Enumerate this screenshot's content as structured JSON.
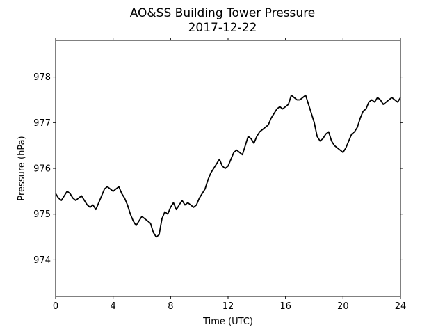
{
  "chart_data": {
    "type": "line",
    "title": "AO&SS Building Tower Pressure",
    "subtitle": "2017-12-22",
    "xlabel": "Time (UTC)",
    "ylabel": "Pressure (hPa)",
    "xlim": [
      0,
      24
    ],
    "ylim": [
      973.2,
      978.8
    ],
    "xticks": [
      0,
      4,
      8,
      12,
      16,
      20,
      24
    ],
    "yticks": [
      974,
      975,
      976,
      977,
      978
    ],
    "grid": false,
    "line_color": "#000000",
    "series": [
      {
        "x": [
          0,
          0.2,
          0.4,
          0.6,
          0.8,
          1.0,
          1.2,
          1.4,
          1.6,
          1.8,
          2.0,
          2.2,
          2.4,
          2.6,
          2.8,
          3.0,
          3.2,
          3.4,
          3.6,
          3.8,
          4.0,
          4.2,
          4.4,
          4.6,
          4.8,
          5.0,
          5.2,
          5.4,
          5.6,
          5.8,
          6.0,
          6.2,
          6.4,
          6.6,
          6.8,
          7.0,
          7.2,
          7.4,
          7.6,
          7.8,
          8.0,
          8.2,
          8.4,
          8.6,
          8.8,
          9.0,
          9.2,
          9.4,
          9.6,
          9.8,
          10.0,
          10.2,
          10.4,
          10.6,
          10.8,
          11.0,
          11.2,
          11.4,
          11.6,
          11.8,
          12.0,
          12.2,
          12.4,
          12.6,
          12.8,
          13.0,
          13.2,
          13.4,
          13.6,
          13.8,
          14.0,
          14.2,
          14.4,
          14.6,
          14.8,
          15.0,
          15.2,
          15.4,
          15.6,
          15.8,
          16.0,
          16.2,
          16.4,
          16.6,
          16.8,
          17.0,
          17.2,
          17.4,
          17.6,
          17.8,
          18.0,
          18.2,
          18.4,
          18.6,
          18.8,
          19.0,
          19.2,
          19.4,
          19.6,
          19.8,
          20.0,
          20.2,
          20.4,
          20.6,
          20.8,
          21.0,
          21.2,
          21.4,
          21.6,
          21.8,
          22.0,
          22.2,
          22.4,
          22.6,
          22.8,
          23.0,
          23.2,
          23.4,
          23.6,
          23.8,
          24.0
        ],
        "values": [
          975.45,
          975.35,
          975.3,
          975.4,
          975.5,
          975.45,
          975.35,
          975.3,
          975.35,
          975.4,
          975.3,
          975.2,
          975.15,
          975.2,
          975.1,
          975.25,
          975.4,
          975.55,
          975.6,
          975.55,
          975.5,
          975.55,
          975.6,
          975.45,
          975.35,
          975.2,
          975.0,
          974.85,
          974.75,
          974.85,
          974.95,
          974.9,
          974.85,
          974.8,
          974.6,
          974.5,
          974.55,
          974.9,
          975.05,
          975.0,
          975.15,
          975.25,
          975.1,
          975.2,
          975.3,
          975.2,
          975.25,
          975.2,
          975.15,
          975.2,
          975.35,
          975.45,
          975.55,
          975.75,
          975.9,
          976.0,
          976.1,
          976.2,
          976.05,
          976.0,
          976.05,
          976.2,
          976.35,
          976.4,
          976.35,
          976.3,
          976.5,
          976.7,
          976.65,
          976.55,
          976.7,
          976.8,
          976.85,
          976.9,
          976.95,
          977.1,
          977.2,
          977.3,
          977.35,
          977.3,
          977.35,
          977.4,
          977.6,
          977.55,
          977.5,
          977.5,
          977.55,
          977.6,
          977.4,
          977.2,
          977.0,
          976.7,
          976.6,
          976.65,
          976.75,
          976.8,
          976.6,
          976.5,
          976.45,
          976.4,
          976.35,
          976.45,
          976.6,
          976.75,
          976.8,
          976.9,
          977.1,
          977.25,
          977.3,
          977.45,
          977.5,
          977.45,
          977.55,
          977.5,
          977.4,
          977.45,
          977.5,
          977.55,
          977.5,
          977.45,
          977.55
        ]
      }
    ]
  }
}
